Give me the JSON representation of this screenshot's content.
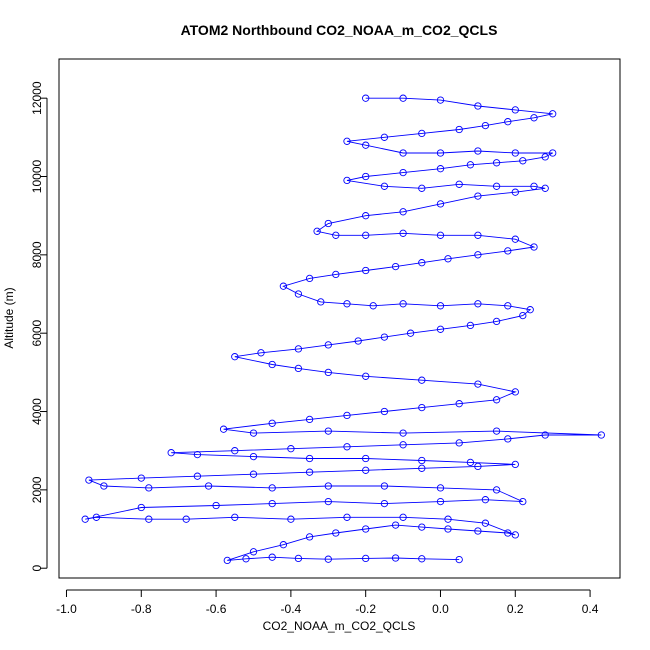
{
  "chart_data": {
    "type": "scatter",
    "title": "ATOM2 Northbound CO2_NOAA_m_CO2_QCLS",
    "xlabel": "CO2_NOAA_m_CO2_QCLS",
    "ylabel": "Altitude (m)",
    "xlim": [
      -1.02,
      0.48
    ],
    "ylim": [
      -250,
      13000
    ],
    "x_ticks": [
      -1.0,
      -0.8,
      -0.6,
      -0.4,
      -0.2,
      0.0,
      0.2,
      0.4
    ],
    "x_tick_labels": [
      "-1.0",
      "-0.8",
      "-0.6",
      "-0.4",
      "-0.2",
      "0.0",
      "0.2",
      "0.4"
    ],
    "y_ticks": [
      0,
      2000,
      4000,
      6000,
      8000,
      10000,
      12000
    ],
    "y_tick_labels": [
      "0",
      "2000",
      "4000",
      "6000",
      "8000",
      "10000",
      "12000"
    ],
    "marker": "open-circle",
    "connect_points": true,
    "color": "#0000ff",
    "series": [
      {
        "name": "CO2_NOAA_m_CO2_QCLS",
        "x": [
          0.05,
          -0.05,
          -0.12,
          -0.2,
          -0.3,
          -0.38,
          -0.45,
          -0.52,
          -0.57,
          -0.5,
          -0.42,
          -0.35,
          -0.28,
          -0.2,
          -0.12,
          -0.05,
          0.02,
          0.1,
          0.18,
          0.2,
          0.12,
          0.02,
          -0.1,
          -0.25,
          -0.4,
          -0.55,
          -0.68,
          -0.78,
          -0.92,
          -0.95,
          -0.8,
          -0.6,
          -0.45,
          -0.3,
          -0.15,
          0.0,
          0.12,
          0.22,
          0.15,
          0.0,
          -0.15,
          -0.3,
          -0.45,
          -0.62,
          -0.78,
          -0.9,
          -0.94,
          -0.8,
          -0.65,
          -0.5,
          -0.35,
          -0.2,
          -0.05,
          0.1,
          0.2,
          0.08,
          -0.05,
          -0.2,
          -0.35,
          -0.5,
          -0.65,
          -0.72,
          -0.55,
          -0.4,
          -0.25,
          -0.1,
          0.05,
          0.18,
          0.28,
          0.43,
          0.15,
          -0.1,
          -0.3,
          -0.5,
          -0.58,
          -0.45,
          -0.35,
          -0.25,
          -0.15,
          -0.05,
          0.05,
          0.15,
          0.2,
          0.1,
          -0.05,
          -0.2,
          -0.3,
          -0.38,
          -0.45,
          -0.55,
          -0.48,
          -0.38,
          -0.3,
          -0.22,
          -0.15,
          -0.08,
          0.0,
          0.08,
          0.15,
          0.22,
          0.24,
          0.18,
          0.1,
          0.0,
          -0.1,
          -0.18,
          -0.25,
          -0.32,
          -0.38,
          -0.42,
          -0.35,
          -0.28,
          -0.2,
          -0.12,
          -0.05,
          0.02,
          0.1,
          0.18,
          0.25,
          0.2,
          0.1,
          0.0,
          -0.1,
          -0.2,
          -0.28,
          -0.33,
          -0.3,
          -0.2,
          -0.1,
          0.0,
          0.1,
          0.2,
          0.28,
          0.25,
          0.15,
          0.05,
          -0.05,
          -0.15,
          -0.25,
          -0.2,
          -0.1,
          0.0,
          0.08,
          0.15,
          0.22,
          0.28,
          0.3,
          0.2,
          0.1,
          0.0,
          -0.1,
          -0.2,
          -0.25,
          -0.15,
          -0.05,
          0.05,
          0.12,
          0.18,
          0.25,
          0.3,
          0.2,
          0.1,
          0.0,
          -0.1,
          -0.2
        ],
        "y": [
          220,
          240,
          260,
          250,
          230,
          250,
          280,
          240,
          200,
          420,
          600,
          800,
          900,
          1000,
          1100,
          1050,
          1000,
          950,
          900,
          850,
          1150,
          1250,
          1300,
          1300,
          1250,
          1300,
          1250,
          1250,
          1300,
          1250,
          1550,
          1600,
          1650,
          1700,
          1650,
          1700,
          1750,
          1700,
          2000,
          2050,
          2100,
          2100,
          2050,
          2100,
          2050,
          2100,
          2250,
          2300,
          2350,
          2400,
          2450,
          2500,
          2550,
          2600,
          2650,
          2700,
          2750,
          2800,
          2800,
          2850,
          2900,
          2950,
          3000,
          3050,
          3100,
          3150,
          3200,
          3300,
          3400,
          3400,
          3500,
          3450,
          3500,
          3450,
          3550,
          3700,
          3800,
          3900,
          4000,
          4100,
          4200,
          4300,
          4500,
          4700,
          4800,
          4900,
          5000,
          5100,
          5200,
          5400,
          5500,
          5600,
          5700,
          5800,
          5900,
          6000,
          6100,
          6200,
          6300,
          6450,
          6600,
          6700,
          6750,
          6700,
          6750,
          6700,
          6750,
          6800,
          7000,
          7200,
          7400,
          7500,
          7600,
          7700,
          7800,
          7900,
          8000,
          8100,
          8200,
          8400,
          8500,
          8500,
          8550,
          8500,
          8500,
          8600,
          8800,
          9000,
          9100,
          9300,
          9500,
          9600,
          9700,
          9750,
          9750,
          9800,
          9700,
          9750,
          9900,
          10000,
          10100,
          10200,
          10300,
          10350,
          10400,
          10500,
          10600,
          10600,
          10650,
          10600,
          10600,
          10800,
          10900,
          11000,
          11100,
          11200,
          11300,
          11400,
          11500,
          11600,
          11700,
          11800,
          11950,
          12000,
          12000
        ]
      }
    ]
  }
}
